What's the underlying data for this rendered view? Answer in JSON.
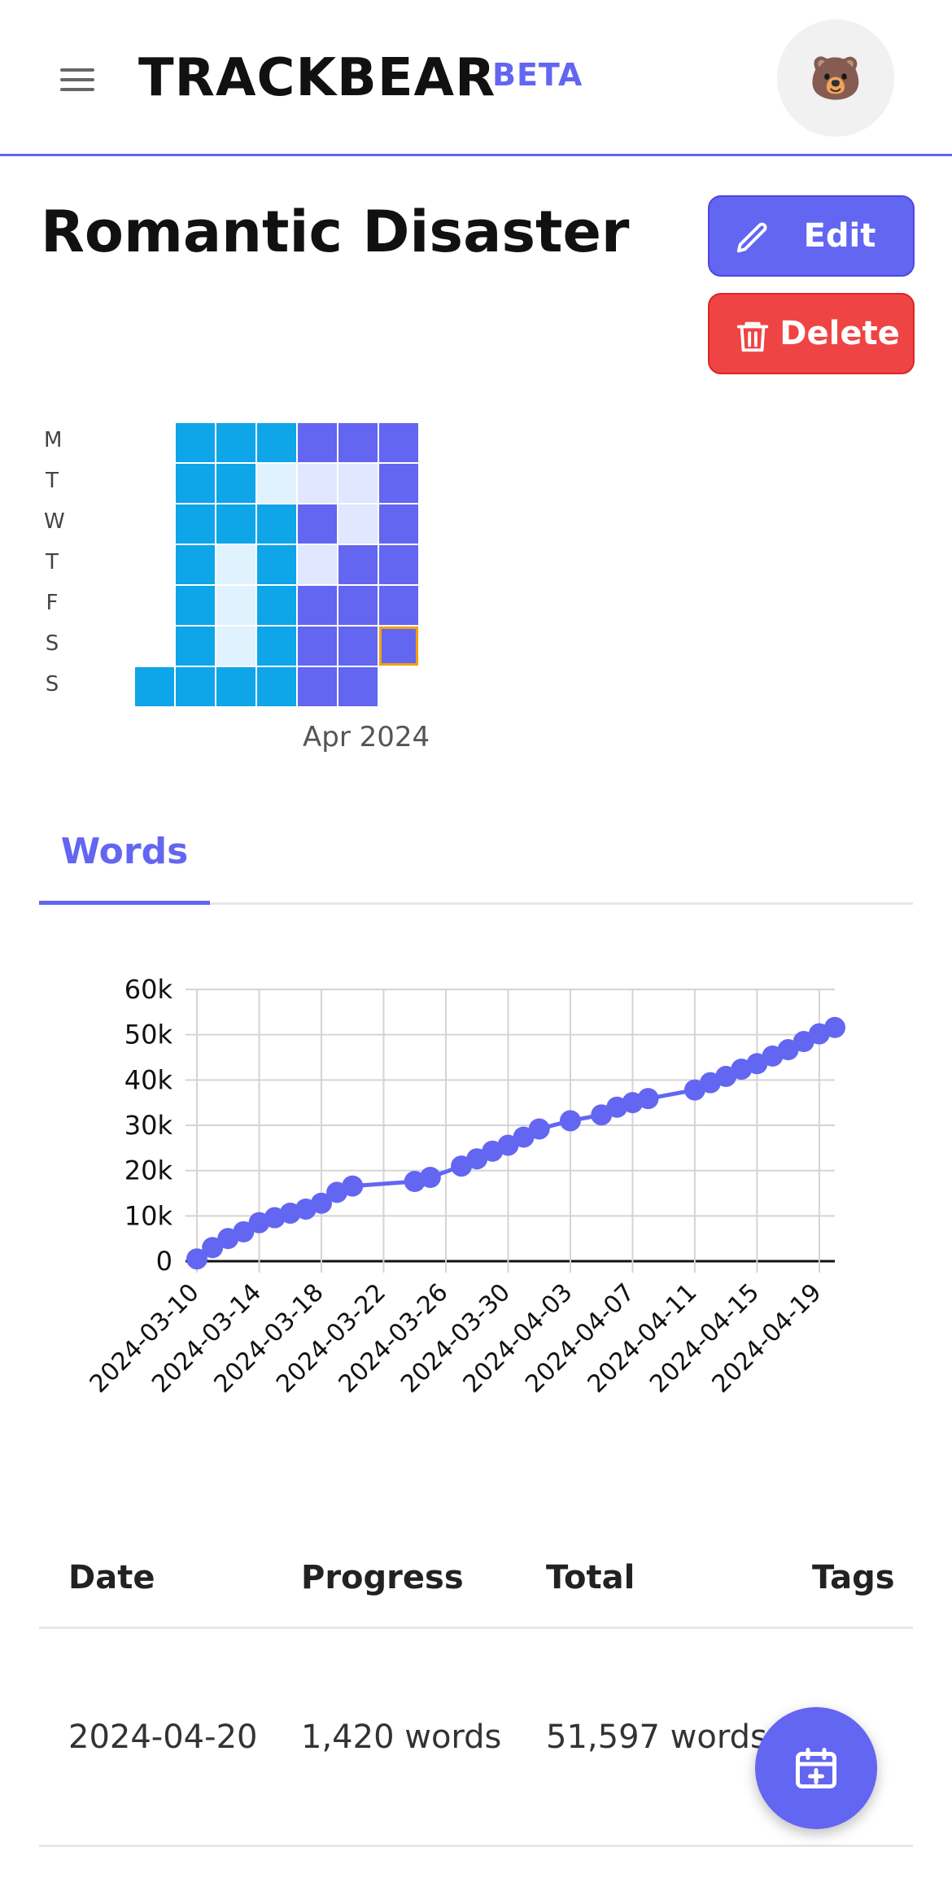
{
  "header": {
    "brand": "TRACKBEAR",
    "badge": "BETA",
    "avatar_emoji": "🐻"
  },
  "project": {
    "title": "Romantic Disaster",
    "edit_label": "Edit",
    "delete_label": "Delete"
  },
  "heatmap": {
    "day_labels": [
      "M",
      "T",
      "W",
      "T",
      "F",
      "S",
      "S"
    ],
    "month_label": "Apr 2024",
    "colors": {
      "high": "#0ea5e9",
      "low": "#e0f2fe",
      "purple": "#6366f1",
      "purple_light": "#e0e7ff",
      "today_border": "#f59e0b"
    },
    "weeks": [
      [
        null,
        null,
        null,
        null,
        null,
        null,
        "high"
      ],
      [
        "high",
        "high",
        "high",
        "high",
        "high",
        "high",
        "high"
      ],
      [
        "high",
        "high",
        "high",
        "low",
        "low",
        "low",
        "high"
      ],
      [
        "high",
        "low",
        "high",
        "high",
        "high",
        "high",
        "high"
      ],
      [
        "purple",
        "purple_light",
        "purple",
        "purple_light",
        "purple",
        "purple",
        "purple"
      ],
      [
        "purple",
        "purple_light",
        "purple_light",
        "purple",
        "purple",
        "purple",
        "purple"
      ],
      [
        "purple",
        "purple",
        "purple",
        "purple",
        "purple",
        "purple",
        null
      ]
    ],
    "today": {
      "week": 6,
      "day": 5
    }
  },
  "tabs": [
    {
      "label": "Words",
      "active": true
    }
  ],
  "chart_data": {
    "type": "line",
    "title": "",
    "xlabel": "",
    "ylabel": "",
    "ylim": [
      0,
      60000
    ],
    "y_ticks": [
      "0",
      "10k",
      "20k",
      "30k",
      "40k",
      "50k",
      "60k"
    ],
    "x_ticks": [
      "2024-03-10",
      "2024-03-14",
      "2024-03-18",
      "2024-03-22",
      "2024-03-26",
      "2024-03-30",
      "2024-04-03",
      "2024-04-07",
      "2024-04-11",
      "2024-04-15",
      "2024-04-19"
    ],
    "x_range": [
      "2024-03-10",
      "2024-04-20"
    ],
    "grid": true,
    "color": "#6366f1",
    "series": [
      {
        "points": [
          [
            "2024-03-10",
            500
          ],
          [
            "2024-03-11",
            3000
          ],
          [
            "2024-03-12",
            5000
          ],
          [
            "2024-03-13",
            6500
          ],
          [
            "2024-03-14",
            8500
          ],
          [
            "2024-03-15",
            9600
          ],
          [
            "2024-03-16",
            10600
          ],
          [
            "2024-03-17",
            11500
          ],
          [
            "2024-03-18",
            12800
          ],
          [
            "2024-03-19",
            15200
          ],
          [
            "2024-03-20",
            16600
          ],
          [
            "2024-03-24",
            17600
          ],
          [
            "2024-03-25",
            18500
          ],
          [
            "2024-03-27",
            21000
          ],
          [
            "2024-03-28",
            22600
          ],
          [
            "2024-03-29",
            24300
          ],
          [
            "2024-03-30",
            25600
          ],
          [
            "2024-03-31",
            27400
          ],
          [
            "2024-04-01",
            29200
          ],
          [
            "2024-04-03",
            31000
          ],
          [
            "2024-04-05",
            32300
          ],
          [
            "2024-04-06",
            34000
          ],
          [
            "2024-04-07",
            35000
          ],
          [
            "2024-04-08",
            35900
          ],
          [
            "2024-04-11",
            37800
          ],
          [
            "2024-04-12",
            39400
          ],
          [
            "2024-04-13",
            40800
          ],
          [
            "2024-04-14",
            42400
          ],
          [
            "2024-04-15",
            43600
          ],
          [
            "2024-04-16",
            45300
          ],
          [
            "2024-04-17",
            46700
          ],
          [
            "2024-04-18",
            48500
          ],
          [
            "2024-04-19",
            50200
          ],
          [
            "2024-04-20",
            51597
          ]
        ]
      }
    ]
  },
  "table": {
    "headers": {
      "date": "Date",
      "progress": "Progress",
      "total": "Total",
      "tags": "Tags"
    },
    "rows": [
      {
        "date": "2024-04-20",
        "progress": "1,420 words",
        "total": "51,597 words",
        "tags": ""
      }
    ]
  }
}
